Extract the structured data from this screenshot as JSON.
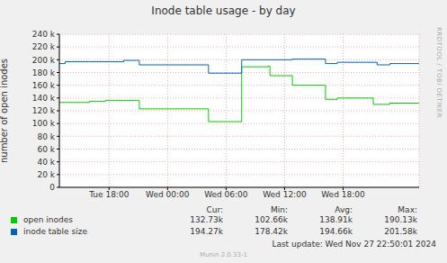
{
  "chart_data": {
    "type": "line",
    "title": "Inode table usage - by day",
    "y_label": "number of open inodes",
    "line_style": "step",
    "grid": true,
    "x": [
      12.9,
      13.5,
      16.0,
      17.6,
      19.5,
      20.8,
      21.1,
      28.2,
      31.6,
      34.3,
      34.5,
      36.8,
      40.1,
      40.2,
      41.4,
      45.1,
      45.5,
      46.8,
      49.8
    ],
    "xlim": [
      12.9,
      49.8
    ],
    "xticks": [
      {
        "value": 18,
        "label": "Tue 18:00"
      },
      {
        "value": 24,
        "label": "Wed 00:00"
      },
      {
        "value": 30,
        "label": "Wed 06:00"
      },
      {
        "value": 36,
        "label": "Wed 12:00"
      },
      {
        "value": 42,
        "label": "Wed 18:00"
      }
    ],
    "ylim": [
      0,
      240000
    ],
    "yticks": [
      0,
      {
        "value": 20000,
        "label": "20 k"
      },
      {
        "value": 40000,
        "label": "40 k"
      },
      {
        "value": 60000,
        "label": "60 k"
      },
      {
        "value": 80000,
        "label": "80 k"
      },
      {
        "value": 100000,
        "label": "100 k"
      },
      {
        "value": 120000,
        "label": "120 k"
      },
      {
        "value": 140000,
        "label": "140 k"
      },
      {
        "value": 160000,
        "label": "160 k"
      },
      {
        "value": 180000,
        "label": "180 k"
      },
      {
        "value": 200000,
        "label": "200 k"
      },
      {
        "value": 220000,
        "label": "220 k"
      },
      {
        "value": 240000,
        "label": "240 k"
      }
    ],
    "series": [
      {
        "name": "open inodes",
        "color": "#00cc00",
        "values": [
          133000,
          133000,
          135000,
          136000,
          136000,
          136000,
          123000,
          103000,
          189000,
          190000,
          175000,
          160000,
          160000,
          138000,
          140000,
          130000,
          130000,
          132000,
          132000
        ],
        "stats": [
          "132.73k",
          "102.66k",
          "138.91k",
          "190.13k"
        ]
      },
      {
        "name": "inode table size",
        "color": "#0066b3",
        "values": [
          194000,
          197000,
          197000,
          197000,
          199000,
          199000,
          192000,
          179000,
          200000,
          200000,
          200000,
          201000,
          201000,
          194000,
          196000,
          196000,
          192000,
          194000,
          194000
        ],
        "stats": [
          "194.27k",
          "178.42k",
          "194.66k",
          "201.58k"
        ]
      }
    ],
    "stats_columns": [
      "Cur:",
      "Min:",
      "Avg:",
      "Max:"
    ],
    "last_update": "Last update: Wed Nov 27 22:50:01 2024",
    "footer": "Munin 2.0.33-1",
    "watermark": "RRDTOOL / TOBI OETIKER"
  }
}
